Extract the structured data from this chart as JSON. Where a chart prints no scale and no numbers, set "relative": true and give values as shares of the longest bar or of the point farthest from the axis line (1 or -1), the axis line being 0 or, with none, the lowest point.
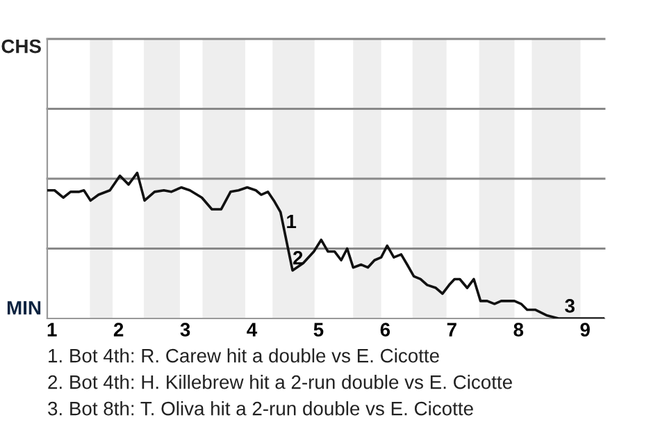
{
  "chart_data": {
    "type": "line",
    "relative": true,
    "x": [
      0.93,
      1.04,
      1.17,
      1.28,
      1.41,
      1.48,
      1.58,
      1.7,
      1.87,
      2.02,
      2.15,
      2.28,
      2.39,
      2.54,
      2.68,
      2.79,
      2.94,
      3.07,
      3.25,
      3.4,
      3.54,
      3.68,
      3.8,
      3.93,
      4.06,
      4.14,
      4.24,
      4.33,
      4.43,
      4.61,
      4.77,
      4.93,
      5.04,
      5.14,
      5.24,
      5.34,
      5.43,
      5.52,
      5.64,
      5.74,
      5.84,
      5.94,
      6.03,
      6.13,
      6.24,
      6.33,
      6.43,
      6.53,
      6.63,
      6.76,
      6.86,
      6.96,
      7.04,
      7.12,
      7.23,
      7.33,
      7.43,
      7.53,
      7.64,
      7.74,
      7.94,
      8.04,
      8.13,
      8.25,
      8.43,
      8.6,
      8.78,
      9.29
    ],
    "series": [
      {
        "color": "#111111",
        "values": [
          0.88,
          0.88,
          0.83,
          0.87,
          0.87,
          0.88,
          0.81,
          0.85,
          0.88,
          0.98,
          0.92,
          1,
          0.81,
          0.87,
          0.88,
          0.87,
          0.9,
          0.88,
          0.83,
          0.75,
          0.75,
          0.87,
          0.88,
          0.9,
          0.88,
          0.85,
          0.87,
          0.81,
          0.73,
          0.33,
          0.38,
          0.46,
          0.54,
          0.46,
          0.46,
          0.4,
          0.48,
          0.35,
          0.37,
          0.35,
          0.4,
          0.42,
          0.5,
          0.42,
          0.44,
          0.37,
          0.29,
          0.27,
          0.23,
          0.21,
          0.17,
          0.23,
          0.27,
          0.27,
          0.21,
          0.27,
          0.12,
          0.12,
          0.1,
          0.12,
          0.12,
          0.1,
          0.06,
          0.06,
          0.02,
          0,
          0,
          0
        ]
      }
    ],
    "xlim": [
      0.93,
      9.29
    ],
    "xticks": [
      1,
      2,
      3,
      4,
      5,
      6,
      7,
      8,
      9
    ],
    "ref_lines": [
      {
        "axis": "y",
        "value": 0.48,
        "color": "#888888"
      },
      {
        "axis": "y",
        "value": 0.96,
        "color": "#888888"
      },
      {
        "axis": "y",
        "value": 1.44,
        "color": "#888888"
      },
      {
        "axis": "y",
        "value": 1.92,
        "color": "#888888"
      }
    ],
    "line_style": "solid",
    "marker": "none",
    "bands": [
      {
        "axis": "x",
        "from": 1.57,
        "to": 1.91,
        "color": "#eeeeee"
      },
      {
        "axis": "x",
        "from": 2.38,
        "to": 2.92,
        "color": "#eeeeee"
      },
      {
        "axis": "x",
        "from": 3.26,
        "to": 3.9,
        "color": "#eeeeee"
      },
      {
        "axis": "x",
        "from": 4.31,
        "to": 4.94,
        "color": "#eeeeee"
      },
      {
        "axis": "x",
        "from": 5.52,
        "to": 5.94,
        "color": "#eeeeee"
      },
      {
        "axis": "x",
        "from": 6.41,
        "to": 6.92,
        "color": "#eeeeee"
      },
      {
        "axis": "x",
        "from": 7.41,
        "to": 7.94,
        "color": "#eeeeee"
      },
      {
        "axis": "x",
        "from": 8.2,
        "to": 8.93,
        "color": "#eeeeee"
      }
    ],
    "annotations": [
      "CHS",
      "MIN",
      {
        "text": "1",
        "x": 4.51,
        "y": 0.58
      },
      {
        "text": "2",
        "x": 4.61,
        "y": 0.33
      },
      {
        "text": "3",
        "x": 8.69,
        "y": 0
      },
      "1. Bot 4th: R. Carew hit a double vs E. Cicotte",
      "2. Bot 4th: H. Killebrew hit a 2-run double vs E. Cicotte",
      "3. Bot 8th: T. Oliva hit a 2-run double vs E. Cicotte"
    ]
  }
}
